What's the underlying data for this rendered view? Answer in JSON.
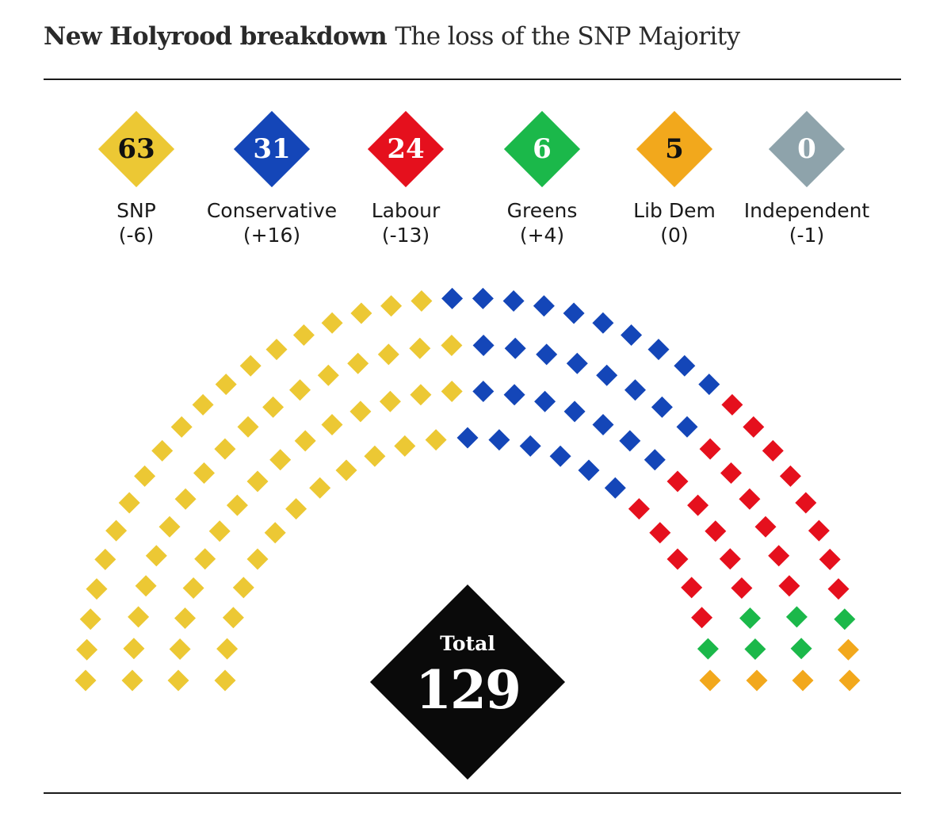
{
  "header": {
    "title_bold": "New Holyrood breakdown",
    "title_sub": "The loss of the SNP Majority"
  },
  "chart_data": {
    "type": "parliament",
    "title": "New Holyrood breakdown The loss of the SNP Majority",
    "parties": [
      {
        "name": "SNP",
        "seats": 63,
        "change": "(-6)",
        "color": "#ecc834",
        "text_color": "#111111"
      },
      {
        "name": "Conservative",
        "seats": 31,
        "change": "(+16)",
        "color": "#1446b8",
        "text_color": "#ffffff"
      },
      {
        "name": "Labour",
        "seats": 24,
        "change": "(-13)",
        "color": "#e5101d",
        "text_color": "#ffffff"
      },
      {
        "name": "Greens",
        "seats": 6,
        "change": "(+4)",
        "color": "#1bb84a",
        "text_color": "#ffffff"
      },
      {
        "name": "Lib Dem",
        "seats": 5,
        "change": "(0)",
        "color": "#f2a81c",
        "text_color": "#111111"
      },
      {
        "name": "Independent",
        "seats": 0,
        "change": "(-1)",
        "color": "#8ea3ab",
        "text_color": "#ffffff"
      }
    ],
    "total_label": "Total",
    "total": 129
  }
}
